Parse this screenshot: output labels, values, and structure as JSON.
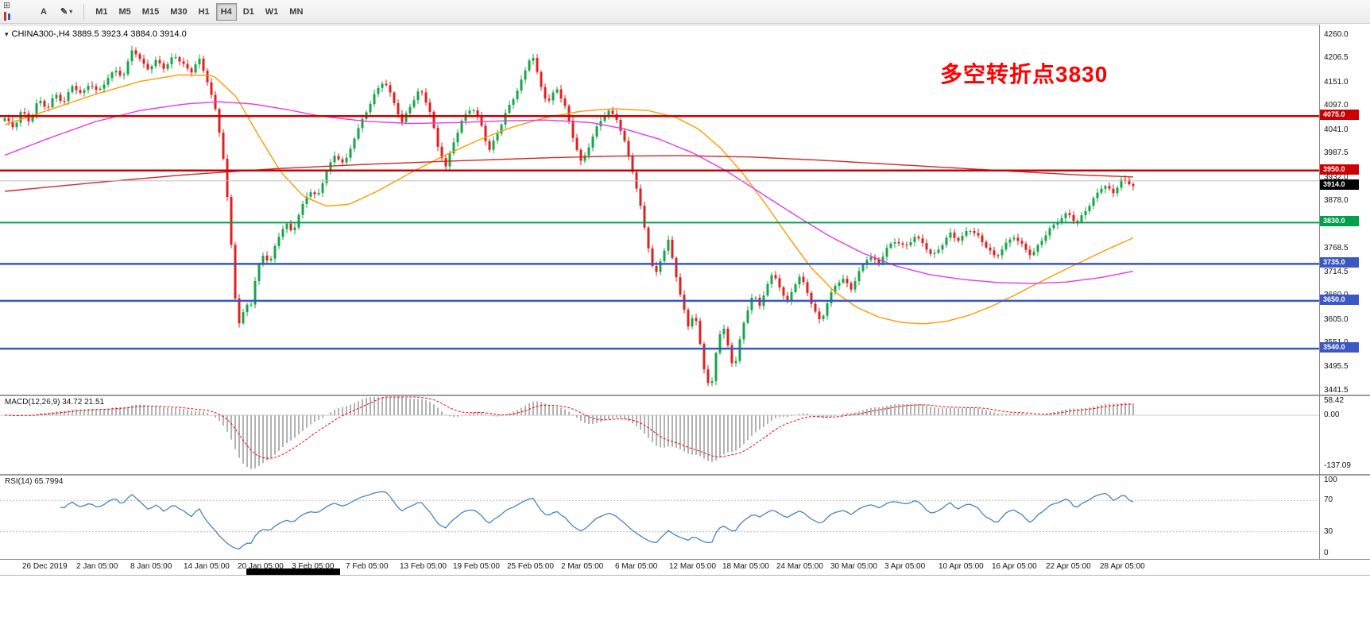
{
  "colors": {
    "candle_up": "#17a549",
    "candle_down": "#e21f1f",
    "macd_histogram": "#b2b2b2",
    "macd_signal": "#ff0000",
    "rsi_line": "#4584c6",
    "annotation": "#ff0000"
  },
  "toolbar": {
    "tools": {
      "grid_glyph": "⊞",
      "text_glyph": "A",
      "draw_glyph": "✎",
      "caret": "▾"
    },
    "timeframes": [
      "M1",
      "M5",
      "M15",
      "M30",
      "H1",
      "H4",
      "D1",
      "W1",
      "MN"
    ],
    "active_timeframe": "H4"
  },
  "chart_meta": {
    "menu_glyph": "▾",
    "title": "CHINA300-,H4 3889.5 3923.4 3884.0 3914.0"
  },
  "chart_data": {
    "type": "candlestick",
    "symbol": "CHINA300",
    "timeframe": "H4",
    "ohlc": {
      "open": 3889.5,
      "high": 3923.4,
      "low": 3884.0,
      "close": 3914.0
    },
    "bars": 285,
    "y_axis_ticks": [
      4260.0,
      4206.5,
      4151.0,
      4097.0,
      4041.0,
      3987.5,
      3932.0,
      3878.0,
      3824.0,
      3768.5,
      3714.5,
      3660.0,
      3605.0,
      3551.0,
      3495.5,
      3441.5
    ],
    "x_labels": [
      "26 Dec 2019",
      "2 Jan 05:00",
      "8 Jan 05:00",
      "14 Jan 05:00",
      "20 Jan 05:00",
      "3 Feb 05:00",
      "7 Feb 05:00",
      "13 Feb 05:00",
      "19 Feb 05:00",
      "25 Feb 05:00",
      "2 Mar 05:00",
      "6 Mar 05:00",
      "12 Mar 05:00",
      "18 Mar 05:00",
      "24 Mar 05:00",
      "30 Mar 05:00",
      "3 Apr 05:00",
      "10 Apr 05:00",
      "16 Apr 05:00",
      "22 Apr 05:00",
      "28 Apr 05:00"
    ],
    "close_keypoints": [
      [
        0.0,
        4070
      ],
      [
        0.008,
        4045
      ],
      [
        0.015,
        4085
      ],
      [
        0.022,
        4060
      ],
      [
        0.03,
        4115
      ],
      [
        0.038,
        4095
      ],
      [
        0.045,
        4130
      ],
      [
        0.052,
        4105
      ],
      [
        0.06,
        4145
      ],
      [
        0.068,
        4120
      ],
      [
        0.075,
        4150
      ],
      [
        0.082,
        4130
      ],
      [
        0.09,
        4160
      ],
      [
        0.098,
        4185
      ],
      [
        0.105,
        4165
      ],
      [
        0.113,
        4230
      ],
      [
        0.12,
        4200
      ],
      [
        0.128,
        4180
      ],
      [
        0.135,
        4205
      ],
      [
        0.142,
        4185
      ],
      [
        0.15,
        4220
      ],
      [
        0.158,
        4195
      ],
      [
        0.165,
        4175
      ],
      [
        0.172,
        4205
      ],
      [
        0.18,
        4150
      ],
      [
        0.188,
        4075
      ],
      [
        0.194,
        3975
      ],
      [
        0.199,
        3840
      ],
      [
        0.204,
        3665
      ],
      [
        0.209,
        3580
      ],
      [
        0.213,
        3655
      ],
      [
        0.217,
        3625
      ],
      [
        0.222,
        3695
      ],
      [
        0.228,
        3755
      ],
      [
        0.235,
        3735
      ],
      [
        0.242,
        3795
      ],
      [
        0.249,
        3830
      ],
      [
        0.255,
        3810
      ],
      [
        0.262,
        3860
      ],
      [
        0.27,
        3905
      ],
      [
        0.277,
        3885
      ],
      [
        0.285,
        3945
      ],
      [
        0.293,
        3985
      ],
      [
        0.301,
        3965
      ],
      [
        0.31,
        4030
      ],
      [
        0.319,
        4080
      ],
      [
        0.328,
        4125
      ],
      [
        0.336,
        4155
      ],
      [
        0.344,
        4110
      ],
      [
        0.352,
        4060
      ],
      [
        0.36,
        4105
      ],
      [
        0.368,
        4140
      ],
      [
        0.376,
        4095
      ],
      [
        0.384,
        4000
      ],
      [
        0.391,
        3955
      ],
      [
        0.398,
        4015
      ],
      [
        0.406,
        4070
      ],
      [
        0.414,
        4100
      ],
      [
        0.422,
        4060
      ],
      [
        0.429,
        3995
      ],
      [
        0.436,
        4030
      ],
      [
        0.444,
        4080
      ],
      [
        0.452,
        4120
      ],
      [
        0.46,
        4170
      ],
      [
        0.467,
        4225
      ],
      [
        0.474,
        4155
      ],
      [
        0.481,
        4105
      ],
      [
        0.489,
        4140
      ],
      [
        0.497,
        4090
      ],
      [
        0.504,
        4020
      ],
      [
        0.511,
        3965
      ],
      [
        0.518,
        4010
      ],
      [
        0.526,
        4060
      ],
      [
        0.534,
        4090
      ],
      [
        0.542,
        4070
      ],
      [
        0.549,
        4015
      ],
      [
        0.556,
        3950
      ],
      [
        0.563,
        3870
      ],
      [
        0.57,
        3780
      ],
      [
        0.576,
        3705
      ],
      [
        0.582,
        3755
      ],
      [
        0.588,
        3790
      ],
      [
        0.594,
        3720
      ],
      [
        0.6,
        3645
      ],
      [
        0.606,
        3585
      ],
      [
        0.611,
        3625
      ],
      [
        0.616,
        3550
      ],
      [
        0.621,
        3475
      ],
      [
        0.626,
        3450
      ],
      [
        0.631,
        3545
      ],
      [
        0.636,
        3605
      ],
      [
        0.641,
        3545
      ],
      [
        0.646,
        3490
      ],
      [
        0.651,
        3555
      ],
      [
        0.657,
        3615
      ],
      [
        0.663,
        3665
      ],
      [
        0.669,
        3635
      ],
      [
        0.675,
        3685
      ],
      [
        0.681,
        3715
      ],
      [
        0.687,
        3685
      ],
      [
        0.693,
        3645
      ],
      [
        0.699,
        3685
      ],
      [
        0.705,
        3705
      ],
      [
        0.711,
        3670
      ],
      [
        0.717,
        3625
      ],
      [
        0.723,
        3600
      ],
      [
        0.729,
        3645
      ],
      [
        0.735,
        3685
      ],
      [
        0.742,
        3705
      ],
      [
        0.75,
        3680
      ],
      [
        0.758,
        3720
      ],
      [
        0.766,
        3752
      ],
      [
        0.774,
        3732
      ],
      [
        0.782,
        3772
      ],
      [
        0.79,
        3792
      ],
      [
        0.798,
        3775
      ],
      [
        0.806,
        3800
      ],
      [
        0.814,
        3780
      ],
      [
        0.822,
        3748
      ],
      [
        0.83,
        3775
      ],
      [
        0.838,
        3806
      ],
      [
        0.846,
        3790
      ],
      [
        0.854,
        3820
      ],
      [
        0.862,
        3800
      ],
      [
        0.87,
        3772
      ],
      [
        0.878,
        3746
      ],
      [
        0.886,
        3776
      ],
      [
        0.894,
        3800
      ],
      [
        0.902,
        3780
      ],
      [
        0.91,
        3756
      ],
      [
        0.918,
        3786
      ],
      [
        0.926,
        3812
      ],
      [
        0.934,
        3832
      ],
      [
        0.942,
        3852
      ],
      [
        0.95,
        3830
      ],
      [
        0.958,
        3862
      ],
      [
        0.966,
        3890
      ],
      [
        0.974,
        3918
      ],
      [
        0.982,
        3893
      ],
      [
        0.99,
        3928
      ],
      [
        1.0,
        3914
      ]
    ],
    "moving_averages": [
      {
        "name": "fast-orange",
        "color": "#ff9900",
        "keypoints": [
          [
            0,
            4055
          ],
          [
            0.04,
            4090
          ],
          [
            0.08,
            4125
          ],
          [
            0.12,
            4155
          ],
          [
            0.155,
            4170
          ],
          [
            0.185,
            4168
          ],
          [
            0.205,
            4120
          ],
          [
            0.225,
            4030
          ],
          [
            0.245,
            3945
          ],
          [
            0.265,
            3890
          ],
          [
            0.285,
            3868
          ],
          [
            0.305,
            3872
          ],
          [
            0.33,
            3902
          ],
          [
            0.36,
            3945
          ],
          [
            0.39,
            3985
          ],
          [
            0.42,
            4020
          ],
          [
            0.45,
            4050
          ],
          [
            0.48,
            4072
          ],
          [
            0.51,
            4086
          ],
          [
            0.54,
            4092
          ],
          [
            0.57,
            4088
          ],
          [
            0.595,
            4072
          ],
          [
            0.615,
            4045
          ],
          [
            0.635,
            4000
          ],
          [
            0.655,
            3940
          ],
          [
            0.675,
            3870
          ],
          [
            0.695,
            3795
          ],
          [
            0.715,
            3725
          ],
          [
            0.735,
            3672
          ],
          [
            0.755,
            3635
          ],
          [
            0.775,
            3612
          ],
          [
            0.795,
            3600
          ],
          [
            0.815,
            3597
          ],
          [
            0.835,
            3603
          ],
          [
            0.855,
            3617
          ],
          [
            0.875,
            3638
          ],
          [
            0.895,
            3663
          ],
          [
            0.915,
            3690
          ],
          [
            0.935,
            3716
          ],
          [
            0.955,
            3741
          ],
          [
            0.975,
            3766
          ],
          [
            1,
            3795
          ]
        ]
      },
      {
        "name": "mid-magenta",
        "color": "#e73ae7",
        "keypoints": [
          [
            0,
            3985
          ],
          [
            0.04,
            4025
          ],
          [
            0.08,
            4062
          ],
          [
            0.12,
            4088
          ],
          [
            0.16,
            4103
          ],
          [
            0.19,
            4108
          ],
          [
            0.22,
            4103
          ],
          [
            0.25,
            4090
          ],
          [
            0.28,
            4075
          ],
          [
            0.32,
            4063
          ],
          [
            0.36,
            4058
          ],
          [
            0.4,
            4060
          ],
          [
            0.44,
            4064
          ],
          [
            0.48,
            4066
          ],
          [
            0.52,
            4060
          ],
          [
            0.55,
            4045
          ],
          [
            0.58,
            4022
          ],
          [
            0.61,
            3990
          ],
          [
            0.64,
            3948
          ],
          [
            0.67,
            3898
          ],
          [
            0.7,
            3848
          ],
          [
            0.73,
            3800
          ],
          [
            0.76,
            3760
          ],
          [
            0.79,
            3730
          ],
          [
            0.82,
            3710
          ],
          [
            0.85,
            3699
          ],
          [
            0.88,
            3692
          ],
          [
            0.91,
            3690
          ],
          [
            0.94,
            3693
          ],
          [
            0.97,
            3703
          ],
          [
            1,
            3718
          ]
        ]
      },
      {
        "name": "slow-red",
        "color": "#d02828",
        "keypoints": [
          [
            0,
            3902
          ],
          [
            0.08,
            3922
          ],
          [
            0.16,
            3940
          ],
          [
            0.24,
            3954
          ],
          [
            0.32,
            3964
          ],
          [
            0.4,
            3972
          ],
          [
            0.48,
            3979
          ],
          [
            0.54,
            3983
          ],
          [
            0.6,
            3984
          ],
          [
            0.66,
            3981
          ],
          [
            0.72,
            3974
          ],
          [
            0.78,
            3965
          ],
          [
            0.84,
            3956
          ],
          [
            0.9,
            3947
          ],
          [
            0.95,
            3940
          ],
          [
            1,
            3935
          ]
        ]
      }
    ],
    "levels": [
      {
        "price": 4075.0,
        "label": "4075.0",
        "color": "#cc0000",
        "width": 2.5
      },
      {
        "price": 3950.0,
        "label": "3950.0",
        "color": "#cc0000",
        "width": 2.5
      },
      {
        "price": 3926.0,
        "label": null,
        "color": "#bdbdbd",
        "width": 1
      },
      {
        "price": 3830.0,
        "label": "3830.0",
        "color": "#00a14b",
        "width": 2
      },
      {
        "price": 3735.0,
        "label": "3735.0",
        "color": "#3a57c4",
        "width": 2.5
      },
      {
        "price": 3650.0,
        "label": "3650.0",
        "color": "#3a57c4",
        "width": 2.5
      },
      {
        "price": 3540.0,
        "label": "3540.0",
        "color": "#3a57c4",
        "width": 2.5
      }
    ],
    "current_price_badge": {
      "label": "3914.0",
      "price": 3914.0,
      "bg": "#000000"
    },
    "indicators": {
      "macd": {
        "label": "MACD(12,26,9)",
        "value_main": "34.72",
        "value_signal": "21.51",
        "axis": [
          "58.42",
          "0.00",
          "-137.09"
        ],
        "fast": 12,
        "slow": 26,
        "signal_period": 9
      },
      "rsi": {
        "label": "RSI(14)",
        "value": "65.7994",
        "axis": [
          "100",
          "70",
          "30",
          "0"
        ],
        "period": 14,
        "levels": [
          70,
          30
        ]
      }
    },
    "annotation": {
      "text": "多空转折点3830"
    }
  }
}
